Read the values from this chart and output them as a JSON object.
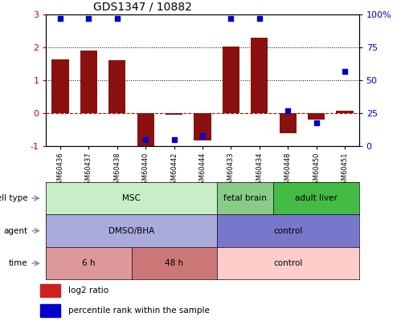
{
  "title": "GDS1347 / 10882",
  "samples": [
    "GSM60436",
    "GSM60437",
    "GSM60438",
    "GSM60440",
    "GSM60442",
    "GSM60444",
    "GSM60433",
    "GSM60434",
    "GSM60448",
    "GSM60450",
    "GSM60451"
  ],
  "log2_ratio": [
    1.65,
    1.9,
    1.62,
    -1.05,
    -0.05,
    -0.82,
    2.03,
    2.3,
    -0.6,
    -0.18,
    0.07
  ],
  "percentile_rank": [
    97,
    97,
    97,
    5,
    5,
    8,
    97,
    97,
    27,
    18,
    57
  ],
  "bar_color": "#8B1010",
  "dot_color": "#0000CC",
  "ylim_left": [
    -1,
    3
  ],
  "ylim_right": [
    0,
    100
  ],
  "yticks_left": [
    -1,
    0,
    1,
    2,
    3
  ],
  "yticks_right": [
    0,
    25,
    50,
    75,
    100
  ],
  "ytick_right_labels": [
    "0",
    "25",
    "50",
    "75",
    "100%"
  ],
  "ytick_left_colors": [
    "#CC0000",
    "#CC0000",
    "#CC0000",
    "#CC0000",
    "#CC0000"
  ],
  "hlines_dotted": [
    1.0,
    2.0
  ],
  "hline_zero_color": "#CC0000",
  "annotation_rows": [
    {
      "label": "cell type",
      "segments": [
        {
          "start": 0,
          "end": 5,
          "text": "MSC",
          "color": "#C8EEC8"
        },
        {
          "start": 6,
          "end": 7,
          "text": "fetal brain",
          "color": "#88CC88"
        },
        {
          "start": 8,
          "end": 10,
          "text": "adult liver",
          "color": "#44BB44"
        }
      ]
    },
    {
      "label": "agent",
      "segments": [
        {
          "start": 0,
          "end": 5,
          "text": "DMSO/BHA",
          "color": "#AAAADD"
        },
        {
          "start": 6,
          "end": 10,
          "text": "control",
          "color": "#7777CC"
        }
      ]
    },
    {
      "label": "time",
      "segments": [
        {
          "start": 0,
          "end": 2,
          "text": "6 h",
          "color": "#DD9999"
        },
        {
          "start": 3,
          "end": 5,
          "text": "48 h",
          "color": "#CC7777"
        },
        {
          "start": 6,
          "end": 10,
          "text": "control",
          "color": "#FFCCCC"
        }
      ]
    }
  ],
  "legend_items": [
    {
      "color": "#CC2222",
      "label": "log2 ratio"
    },
    {
      "color": "#0000CC",
      "label": "percentile rank within the sample"
    }
  ],
  "bar_width": 0.6,
  "dot_size": 20
}
